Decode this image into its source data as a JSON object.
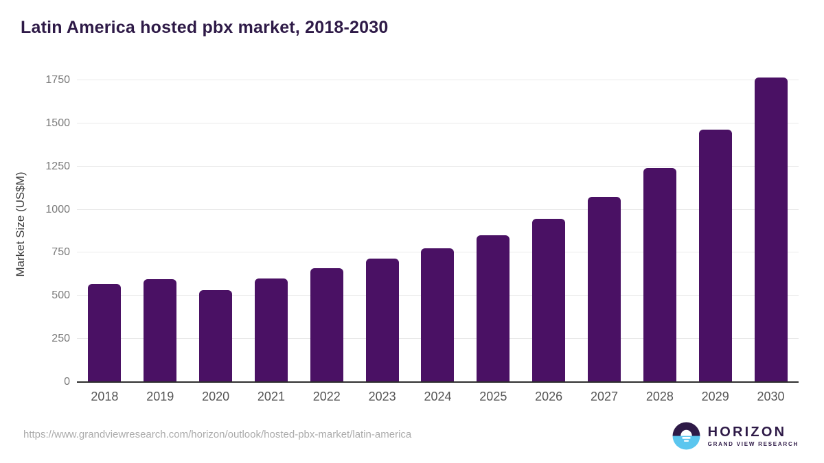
{
  "title": "Latin America hosted pbx market, 2018-2030",
  "source_url": "https://www.grandviewresearch.com/horizon/outlook/hosted-pbx-market/latin-america",
  "logo": {
    "name": "HORIZON",
    "subtitle": "GRAND VIEW RESEARCH"
  },
  "colors": {
    "bar": "#4a1164",
    "title": "#2e1a47",
    "axis": "#2d2d2d",
    "grid": "#e9e9e9",
    "tick": "#7a7a7a",
    "xlabel": "#555555",
    "source": "#ababab",
    "logo_purple": "#2e1a47",
    "logo_blue": "#5bc6ef"
  },
  "chart_data": {
    "type": "bar",
    "title": "Latin America hosted pbx market, 2018-2030",
    "categories": [
      "2018",
      "2019",
      "2020",
      "2021",
      "2022",
      "2023",
      "2024",
      "2025",
      "2026",
      "2027",
      "2028",
      "2029",
      "2030"
    ],
    "values": [
      570,
      595,
      535,
      600,
      660,
      715,
      775,
      850,
      945,
      1075,
      1240,
      1465,
      1765
    ],
    "xlabel": "",
    "ylabel": "Market Size (US$M)",
    "ylim": [
      0,
      1830
    ],
    "yticks": [
      0,
      250,
      500,
      750,
      1000,
      1250,
      1500,
      1750
    ],
    "grid": true,
    "legend": false
  }
}
